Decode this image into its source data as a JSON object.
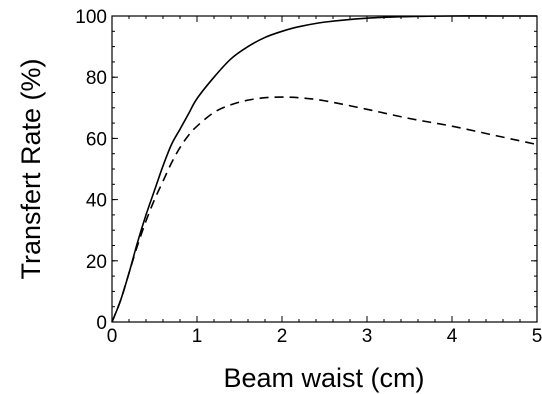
{
  "chart_data": {
    "type": "line",
    "xlabel": "Beam waist (cm)",
    "ylabel": "Transfert Rate (%)",
    "xlim": [
      0,
      5
    ],
    "ylim": [
      0,
      100
    ],
    "x_ticks": [
      0,
      1,
      2,
      3,
      4,
      5
    ],
    "y_ticks": [
      0,
      20,
      40,
      60,
      80,
      100
    ],
    "x_tick_labels": [
      "0",
      "1",
      "2",
      "3",
      "4",
      "5"
    ],
    "y_tick_labels": [
      "0",
      "20",
      "40",
      "60",
      "80",
      "100"
    ],
    "grid": false,
    "legend": "none",
    "series": [
      {
        "line_style": "solid",
        "color": "#000000",
        "x": [
          0,
          0.1,
          0.2,
          0.3,
          0.4,
          0.5,
          0.6,
          0.7,
          0.8,
          0.9,
          1.0,
          1.2,
          1.4,
          1.6,
          1.8,
          2.0,
          2.2,
          2.5,
          3.0,
          3.5,
          4.0,
          4.5,
          5.0
        ],
        "y": [
          0,
          7,
          16,
          26,
          35,
          43,
          51,
          58,
          63,
          68,
          73,
          80,
          86,
          90,
          93,
          95,
          96.5,
          98,
          99.3,
          99.8,
          100,
          100,
          100
        ]
      },
      {
        "line_style": "dashed",
        "color": "#000000",
        "x": [
          0,
          0.1,
          0.2,
          0.3,
          0.4,
          0.5,
          0.6,
          0.7,
          0.8,
          0.9,
          1.0,
          1.2,
          1.4,
          1.6,
          1.8,
          2.0,
          2.2,
          2.5,
          3.0,
          3.5,
          4.0,
          4.5,
          5.0
        ],
        "y": [
          0,
          7,
          16,
          25,
          33,
          40,
          46,
          52,
          57,
          61,
          64,
          68.5,
          71,
          72.5,
          73.3,
          73.5,
          73.3,
          72.3,
          69.5,
          66.5,
          64,
          61,
          58
        ]
      }
    ]
  }
}
